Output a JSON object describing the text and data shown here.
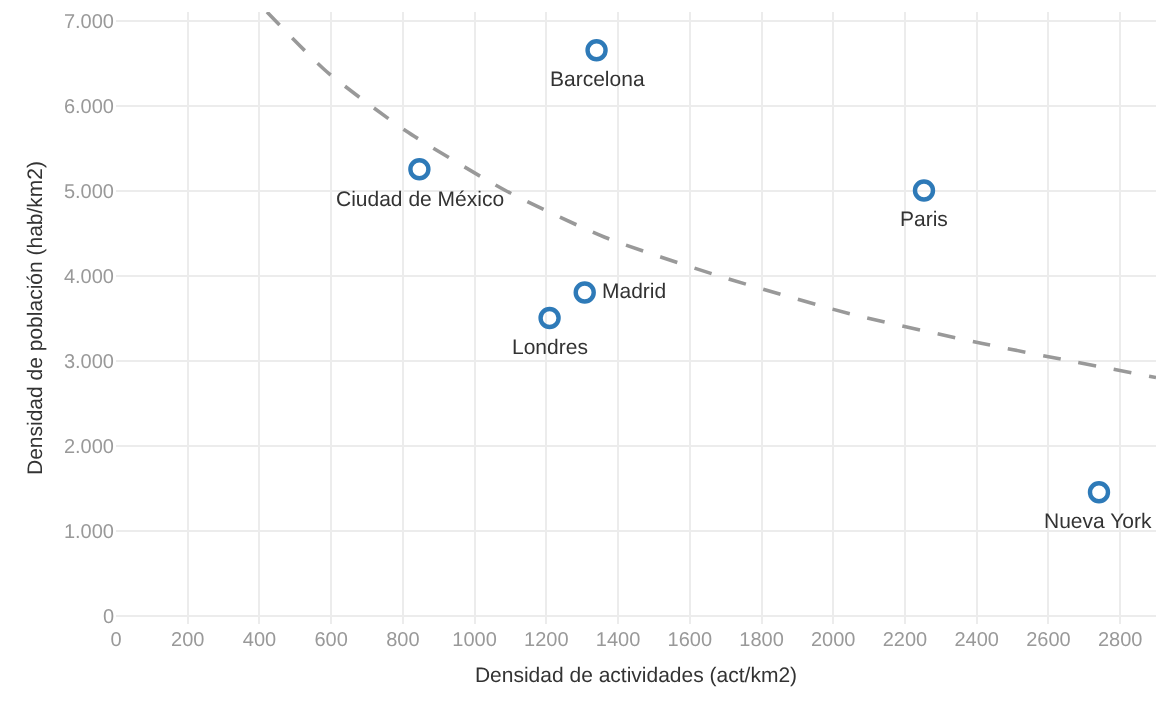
{
  "chart_data": {
    "type": "scatter",
    "xlabel": "Densidad de actividades (act/km2)",
    "ylabel": "Densidad de población (hab/km2)",
    "xlim": [
      0,
      2900
    ],
    "xticks": [
      0,
      200,
      400,
      600,
      800,
      1000,
      1200,
      1400,
      1600,
      1800,
      2000,
      2200,
      2400,
      2600,
      2800
    ],
    "ylim": [
      -100,
      7100
    ],
    "yticks": [
      0,
      {
        "value": 1000,
        "label": "1.000"
      },
      {
        "value": 2000,
        "label": "2.000"
      },
      {
        "value": 3000,
        "label": "3.000"
      },
      {
        "value": 4000,
        "label": "4.000"
      },
      {
        "value": 5000,
        "label": "5.000"
      },
      {
        "value": 6000,
        "label": "6.000"
      },
      {
        "value": 7000,
        "label": "7.000"
      }
    ],
    "grid": true,
    "series": [
      {
        "type": "line",
        "color": "#999999",
        "line_style": "dashed",
        "marker": "none",
        "x": [
          421,
          587,
          809,
          1086,
          1363,
          1677,
          2046,
          2416,
          2900
        ],
        "values": [
          7100,
          6400,
          5700,
          5000,
          4450,
          4000,
          3550,
          3200,
          2800
        ]
      },
      {
        "color": "#2e7ab8",
        "marker": "circle",
        "x": [
          1340,
          846,
          1307,
          1209,
          2253,
          2741
        ],
        "values": [
          6650,
          5250,
          3800,
          3500,
          5000,
          1450
        ]
      }
    ],
    "annotations": [
      {
        "text": "Barcelona",
        "x": 1340,
        "y": 6650
      },
      {
        "text": "Ciudad de México",
        "x": 846,
        "y": 5250
      },
      {
        "text": "Madrid",
        "x": 1307,
        "y": 3800
      },
      {
        "text": "Londres",
        "x": 1209,
        "y": 3500
      },
      {
        "text": "Paris",
        "x": 2253,
        "y": 5000
      },
      {
        "text": "Nueva York",
        "x": 2741,
        "y": 1450
      }
    ]
  }
}
